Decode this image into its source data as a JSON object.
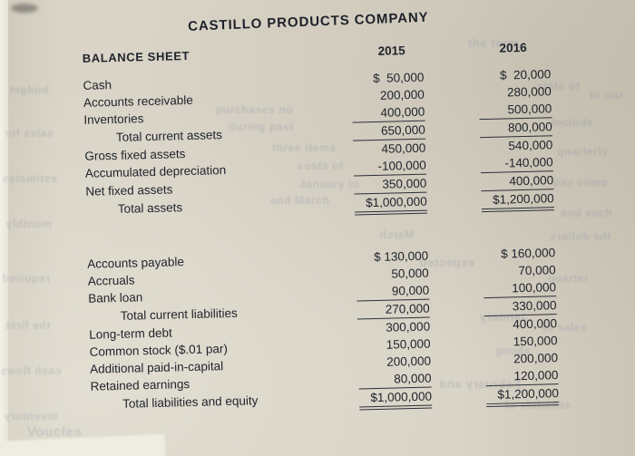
{
  "title": "CASTILLO PRODUCTS COMPANY",
  "subtitle": "BALANCE SHEET",
  "years": [
    "2015",
    "2016"
  ],
  "sections": [
    {
      "name": "assets",
      "rows": [
        {
          "label": "Cash",
          "y2015": "$  50,000",
          "y2016": "$  20,000",
          "indent": false,
          "underline": "none"
        },
        {
          "label": "Accounts receivable",
          "y2015": "200,000",
          "y2016": "280,000",
          "indent": false,
          "underline": "none"
        },
        {
          "label": "Inventories",
          "y2015": "400,000",
          "y2016": "500,000",
          "indent": false,
          "underline": "single"
        },
        {
          "label": "Total current assets",
          "y2015": "650,000",
          "y2016": "800,000",
          "indent": true,
          "underline": "single"
        },
        {
          "label": "Gross fixed assets",
          "y2015": "450,000",
          "y2016": "540,000",
          "indent": false,
          "underline": "none"
        },
        {
          "label": "Accumulated depreciation",
          "y2015": "-100,000",
          "y2016": "-140,000",
          "indent": false,
          "underline": "single"
        },
        {
          "label": "Net fixed assets",
          "y2015": "350,000",
          "y2016": "400,000",
          "indent": false,
          "underline": "single"
        },
        {
          "label": "Total assets",
          "y2015": "$1,000,000",
          "y2016": "$1,200,000",
          "indent": true,
          "underline": "double"
        }
      ]
    },
    {
      "name": "liabilities-and-equity",
      "rows": [
        {
          "label": "Accounts payable",
          "y2015": "$ 130,000",
          "y2016": "$ 160,000",
          "indent": false,
          "underline": "none"
        },
        {
          "label": "Accruals",
          "y2015": "50,000",
          "y2016": "70,000",
          "indent": false,
          "underline": "none"
        },
        {
          "label": "Bank loan",
          "y2015": "90,000",
          "y2016": "100,000",
          "indent": false,
          "underline": "single"
        },
        {
          "label": "Total current liabilities",
          "y2015": "270,000",
          "y2016": "330,000",
          "indent": true,
          "underline": "single"
        },
        {
          "label": "Long-term debt",
          "y2015": "300,000",
          "y2016": "400,000",
          "indent": false,
          "underline": "none"
        },
        {
          "label": "Common stock ($.01 par)",
          "y2015": "150,000",
          "y2016": "150,000",
          "indent": false,
          "underline": "none"
        },
        {
          "label": "Additional paid-in-capital",
          "y2015": "200,000",
          "y2016": "200,000",
          "indent": false,
          "underline": "none"
        },
        {
          "label": "Retained earnings",
          "y2015": "80,000",
          "y2016": "120,000",
          "indent": false,
          "underline": "single"
        },
        {
          "label": "Total liabilities and equity",
          "y2015": "$1,000,000",
          "y2016": "$1,200,000",
          "indent": true,
          "underline": "double"
        }
      ]
    }
  ],
  "scan_bleed_text": [
    "the term",
    "state of",
    "to our",
    "include",
    "quarterly",
    "pay comp",
    "and such",
    "the dollars",
    "expected",
    "quarter",
    "January",
    "to sales",
    "goods",
    "February and",
    "March",
    "schedule of",
    "budget",
    "sales for",
    "estimates",
    "monthly",
    "required",
    "the first",
    "cash flows",
    "inventory",
    "purchases no",
    "during past",
    "three items",
    "costs of",
    "January to",
    "and March",
    "Voucles"
  ]
}
